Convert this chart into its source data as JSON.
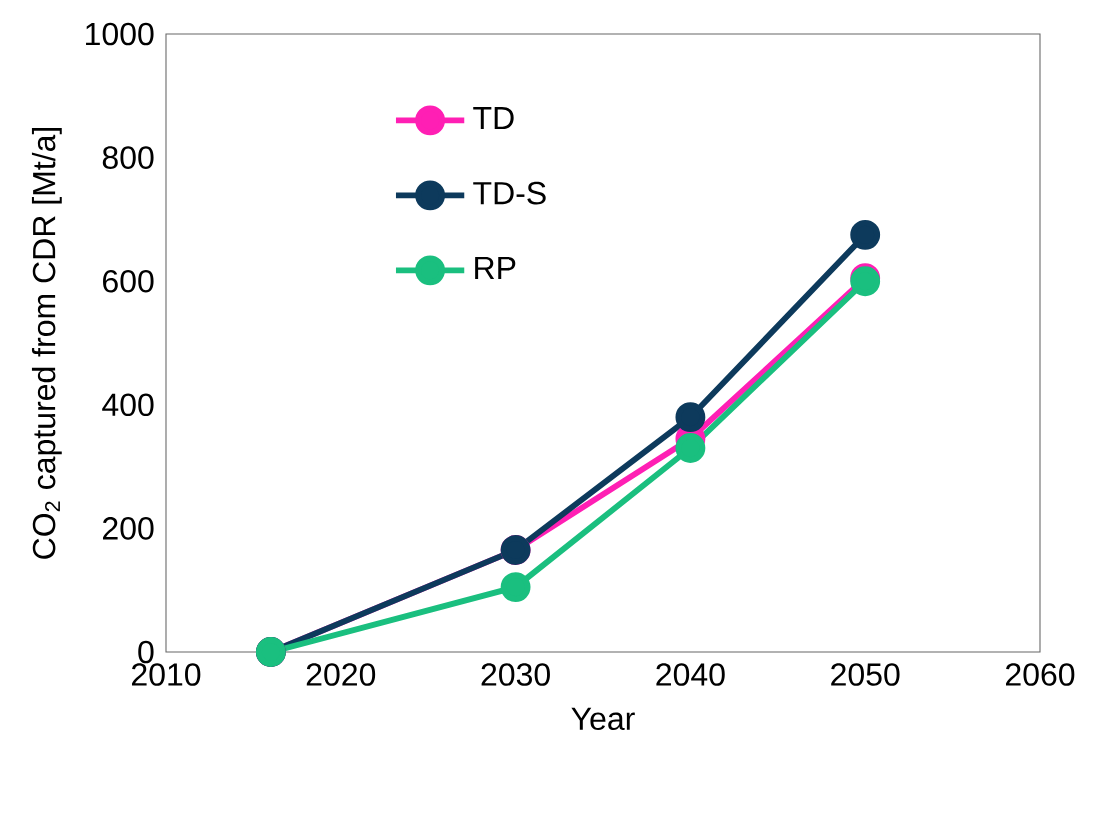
{
  "chart_data": {
    "type": "line",
    "x": [
      2016,
      2030,
      2040,
      2050
    ],
    "series": [
      {
        "name": "TD",
        "color": "#ff1fb4",
        "values": [
          0,
          165,
          345,
          605
        ]
      },
      {
        "name": "TD-S",
        "color": "#0d3a5c",
        "values": [
          0,
          165,
          380,
          675
        ]
      },
      {
        "name": "RP",
        "color": "#1abf7f",
        "values": [
          0,
          105,
          330,
          600
        ]
      }
    ],
    "xlabel": "Year",
    "ylabel": "CO$_{2}$ captured from CDR [Mt/a]",
    "xlim": [
      2010,
      2060
    ],
    "xticks": [
      2010,
      2020,
      2030,
      2040,
      2050,
      2060
    ],
    "ylim": [
      0,
      1000
    ],
    "yticks": [
      0,
      200,
      400,
      600,
      800,
      1000
    ],
    "grid": false,
    "legend": "top left",
    "marker": "circle",
    "line_style": "solid"
  }
}
